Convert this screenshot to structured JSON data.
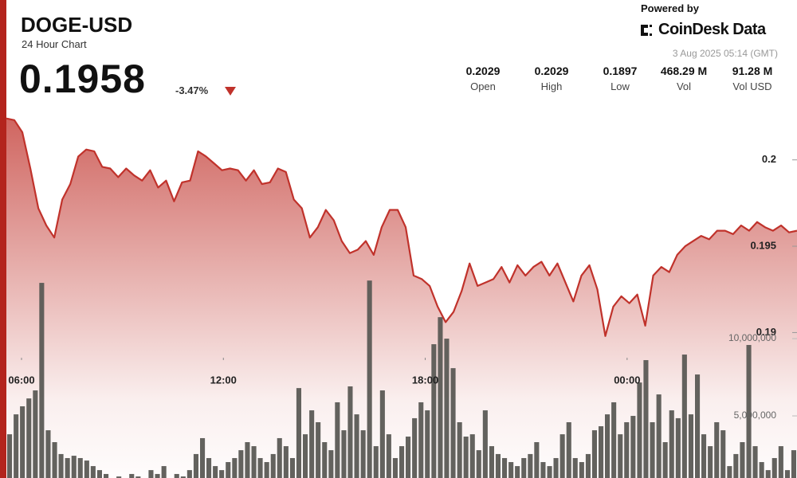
{
  "header": {
    "title": "DOGE-USD",
    "subtitle": "24 Hour Chart",
    "price": "0.1958",
    "change": "-3.47%",
    "powered_by": "Powered by",
    "brand": "CoinDesk Data",
    "timestamp": "3 Aug 2025 05:14 (GMT)",
    "stats": [
      {
        "value": "0.2029",
        "label": "Open"
      },
      {
        "value": "0.2029",
        "label": "High"
      },
      {
        "value": "0.1897",
        "label": "Low"
      },
      {
        "value": "468.29 M",
        "label": "Vol"
      },
      {
        "value": "91.28 M",
        "label": "Vol USD"
      }
    ]
  },
  "chart_data": {
    "type": "line",
    "xlim": [
      5.55,
      29.05
    ],
    "xticks": [
      {
        "value": 6,
        "label": "06:00"
      },
      {
        "value": 12,
        "label": "12:00"
      },
      {
        "value": 18,
        "label": "18:00"
      },
      {
        "value": 24,
        "label": "00:00"
      }
    ],
    "ylim": [
      0.1807,
      0.2028
    ],
    "yticks": [
      0.19,
      0.195,
      0.2
    ],
    "y2lim": [
      0,
      24700000
    ],
    "y2ticks": [
      {
        "value": 5000000,
        "label": "5,000,000"
      },
      {
        "value": 10000000,
        "label": "10,000,000"
      }
    ],
    "series": [
      {
        "name": "Price",
        "color": "#c0322b",
        "values": [
          0.2024,
          0.2023,
          0.2016,
          0.1995,
          0.1972,
          0.1962,
          0.1955,
          0.1977,
          0.1986,
          0.2002,
          0.2006,
          0.2005,
          0.1996,
          0.1995,
          0.199,
          0.1995,
          0.1991,
          0.1988,
          0.1994,
          0.1984,
          0.1988,
          0.1976,
          0.1987,
          0.1988,
          0.2005,
          0.2002,
          0.1998,
          0.1994,
          0.1995,
          0.1994,
          0.1988,
          0.1994,
          0.1986,
          0.1987,
          0.1995,
          0.1993,
          0.1977,
          0.1972,
          0.1955,
          0.1961,
          0.1971,
          0.1965,
          0.1953,
          0.1946,
          0.1948,
          0.1953,
          0.1945,
          0.1961,
          0.1971,
          0.1971,
          0.1961,
          0.1933,
          0.1931,
          0.1927,
          0.1915,
          0.1906,
          0.1912,
          0.1924,
          0.194,
          0.1927,
          0.1929,
          0.1931,
          0.1938,
          0.1929,
          0.1939,
          0.1933,
          0.1938,
          0.1941,
          0.1933,
          0.194,
          0.1929,
          0.1918,
          0.1933,
          0.1939,
          0.1925,
          0.1898,
          0.1915,
          0.1921,
          0.1917,
          0.1922,
          0.1904,
          0.1933,
          0.1938,
          0.1935,
          0.1945,
          0.195,
          0.1953,
          0.1956,
          0.1954,
          0.1959,
          0.1959,
          0.1957,
          0.1962,
          0.1959,
          0.1964,
          0.1961,
          0.1959,
          0.1962,
          0.1958,
          0.1959
        ]
      },
      {
        "name": "Volume",
        "color": "#5b5a55",
        "axis": "y2",
        "values": [
          3810000,
          5100000,
          5620000,
          6130000,
          6650000,
          13610000,
          4070000,
          3300000,
          2530000,
          2270000,
          2420000,
          2270000,
          2110000,
          1750000,
          1490000,
          1240000,
          980000,
          1080000,
          980000,
          1240000,
          1080000,
          980000,
          1490000,
          1240000,
          1750000,
          980000,
          1240000,
          1080000,
          1490000,
          2530000,
          3560000,
          2270000,
          1750000,
          1490000,
          2010000,
          2270000,
          2780000,
          3300000,
          3040000,
          2270000,
          2010000,
          2530000,
          3560000,
          3040000,
          2270000,
          6800000,
          3810000,
          5360000,
          4590000,
          3300000,
          2780000,
          5880000,
          4070000,
          6910000,
          5100000,
          4070000,
          13760000,
          3040000,
          6650000,
          3810000,
          2270000,
          3040000,
          3660000,
          4850000,
          5880000,
          5360000,
          9640000,
          11390000,
          10000000,
          8090000,
          4590000,
          3660000,
          3810000,
          2780000,
          5360000,
          3040000,
          2530000,
          2270000,
          2010000,
          1750000,
          2270000,
          2530000,
          3300000,
          2010000,
          1750000,
          2270000,
          3810000,
          4590000,
          2270000,
          2010000,
          2530000,
          4070000,
          4330000,
          5100000,
          5880000,
          3810000,
          4590000,
          5000000,
          7160000,
          8610000,
          4590000,
          6390000,
          3300000,
          5360000,
          4850000,
          8970000,
          5100000,
          7680000,
          3810000,
          3040000,
          4590000,
          4070000,
          1750000,
          2530000,
          3300000,
          9590000,
          3040000,
          2010000,
          1490000,
          2270000,
          3040000,
          1490000,
          2780000
        ]
      }
    ]
  }
}
